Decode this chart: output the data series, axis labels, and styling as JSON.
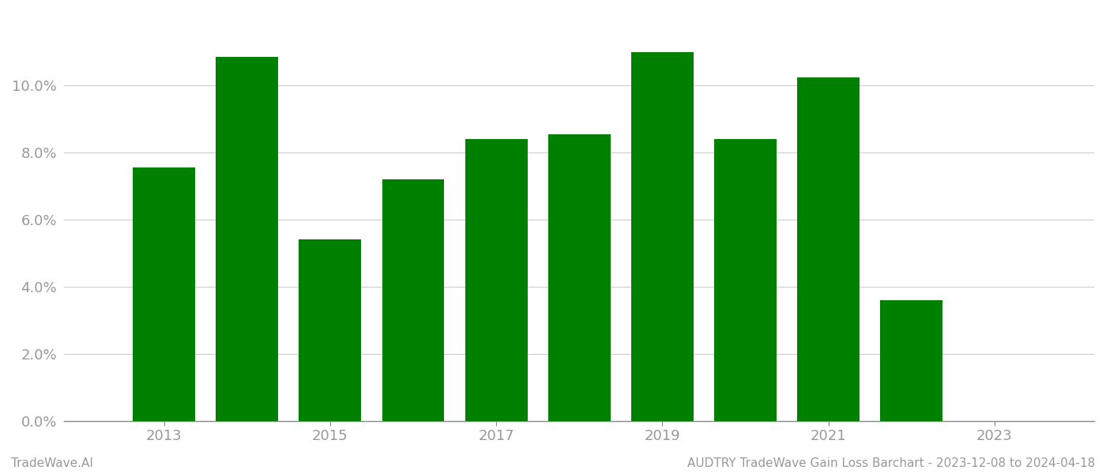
{
  "years": [
    2013,
    2014,
    2015,
    2016,
    2017,
    2018,
    2019,
    2020,
    2021,
    2022
  ],
  "values": [
    0.0755,
    0.1085,
    0.054,
    0.072,
    0.084,
    0.0855,
    0.11,
    0.084,
    0.1025,
    0.036
  ],
  "bar_color": "#008000",
  "background_color": "#ffffff",
  "ytick_labels": [
    "0.0%",
    "2.0%",
    "4.0%",
    "6.0%",
    "8.0%",
    "10.0%"
  ],
  "ytick_values": [
    0.0,
    0.02,
    0.04,
    0.06,
    0.08,
    0.1
  ],
  "xtick_values": [
    2013,
    2015,
    2017,
    2019,
    2021,
    2023
  ],
  "xlim": [
    2011.8,
    2024.2
  ],
  "ylim": [
    0.0,
    0.122
  ],
  "footer_left": "TradeWave.AI",
  "footer_right": "AUDTRY TradeWave Gain Loss Barchart - 2023-12-08 to 2024-04-18",
  "footer_color": "#999999",
  "footer_fontsize": 11,
  "grid_color": "#cccccc",
  "bar_width": 0.75,
  "axis_color": "#888888",
  "tick_color": "#999999",
  "tick_fontsize": 13
}
